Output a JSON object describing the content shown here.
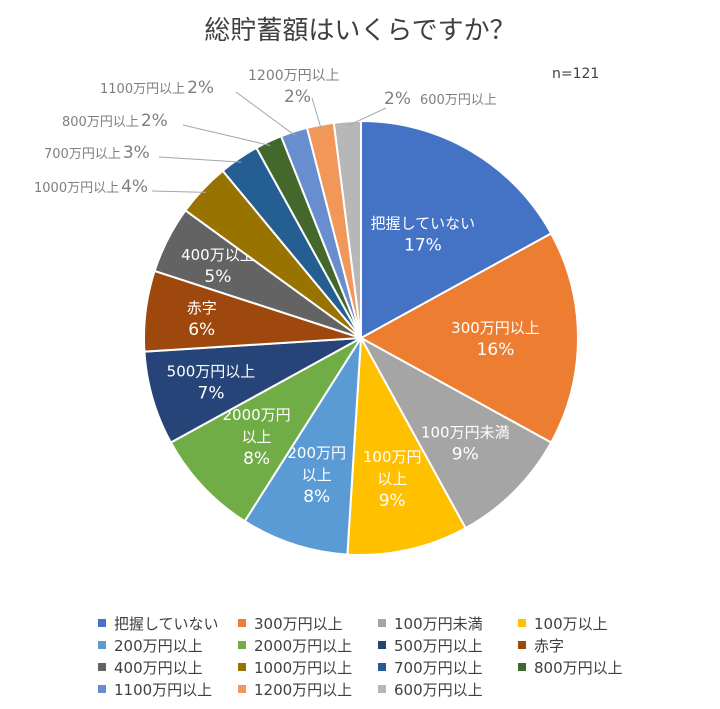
{
  "chart_data": {
    "type": "pie",
    "title": "総貯蓄額はいくらですか？",
    "annotation": "n=121",
    "slices": [
      {
        "name": "把握していない",
        "value": 17,
        "label": "17%",
        "color": "#4472c4"
      },
      {
        "name": "300万円以上",
        "value": 16,
        "label": "16%",
        "color": "#ed7d31"
      },
      {
        "name": "100万円未満",
        "value": 9,
        "label": "9%",
        "color": "#a5a5a5"
      },
      {
        "name": "100万以上",
        "value": 9,
        "label": "9%",
        "color": "#ffc000"
      },
      {
        "name": "200万円以上",
        "value": 8,
        "label": "8%",
        "color": "#5b9bd5"
      },
      {
        "name": "2000万円以上",
        "value": 8,
        "label": "8%",
        "color": "#70ad47"
      },
      {
        "name": "500万円以上",
        "value": 7,
        "label": "7%",
        "color": "#264478"
      },
      {
        "name": "赤字",
        "value": 6,
        "label": "6%",
        "color": "#9e480e"
      },
      {
        "name": "400万円以上",
        "value": 5,
        "label": "5%",
        "color": "#636363"
      },
      {
        "name": "1000万円以上",
        "value": 4,
        "label": "4%",
        "color": "#997300"
      },
      {
        "name": "700万円以上",
        "value": 3,
        "label": "3%",
        "color": "#255e91"
      },
      {
        "name": "800万円以上",
        "value": 2,
        "label": "2%",
        "color": "#43682b"
      },
      {
        "name": "1100万円以上",
        "value": 2,
        "label": "2%",
        "color": "#698ed0"
      },
      {
        "name": "1200万円以上",
        "value": 2,
        "label": "2%",
        "color": "#f1975a"
      },
      {
        "name": "600万円以上",
        "value": 2,
        "label": "2%",
        "color": "#b7b7b7"
      }
    ],
    "slice_label_names": [
      "把握していない",
      "300万円以上",
      "100万円未満",
      "100万円\n以上",
      "200万円\n以上",
      "2000万円\n以上",
      "500万円以上",
      "赤字",
      "400万以上",
      "1000万円以上",
      "700万円以上",
      "800万円以上",
      "1100万円以上",
      "1200万円以上",
      "600万円以上"
    ],
    "legend_position": "bottom"
  }
}
